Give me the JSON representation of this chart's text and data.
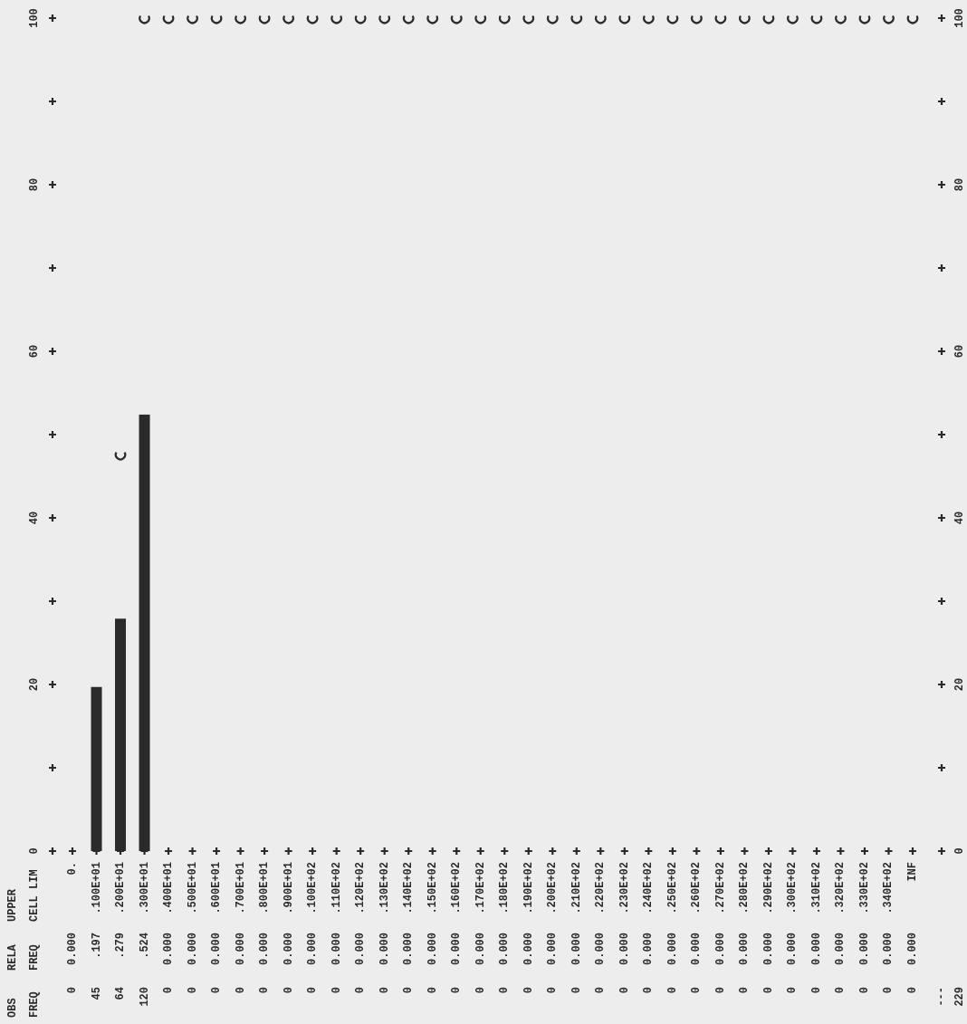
{
  "chart_data": {
    "type": "bar",
    "categories": [
      "0.",
      ".100E+01",
      ".200E+01",
      ".300E+01",
      ".400E+01",
      ".500E+01",
      ".600E+01",
      ".700E+01",
      ".800E+01",
      ".900E+01",
      ".100E+02",
      ".110E+02",
      ".120E+02",
      ".130E+02",
      ".140E+02",
      ".150E+02",
      ".160E+02",
      ".170E+02",
      ".180E+02",
      ".190E+02",
      ".200E+02",
      ".210E+02",
      ".220E+02",
      ".230E+02",
      ".240E+02",
      ".250E+02",
      ".260E+02",
      ".270E+02",
      ".280E+02",
      ".290E+02",
      ".300E+02",
      ".310E+02",
      ".320E+02",
      ".330E+02",
      ".340E+02",
      "INF"
    ],
    "series": [
      {
        "color": "#2a2a2a",
        "values": [
          0,
          19.7,
          27.9,
          52.4,
          0,
          0,
          0,
          0,
          0,
          0,
          0,
          0,
          0,
          0,
          0,
          0,
          0,
          0,
          0,
          0,
          0,
          0,
          0,
          0,
          0,
          0,
          0,
          0,
          0,
          0,
          0,
          0,
          0,
          0,
          0,
          0
        ]
      },
      {
        "type": "scatter",
        "color": "#2a2a2a",
        "values": [
          null,
          null,
          47.6,
          100,
          100,
          100,
          100,
          100,
          100,
          100,
          100,
          100,
          100,
          100,
          100,
          100,
          100,
          100,
          100,
          100,
          100,
          100,
          100,
          100,
          100,
          100,
          100,
          100,
          100,
          100,
          100,
          100,
          100,
          100,
          100,
          100
        ]
      }
    ],
    "ylim": [
      0,
      100
    ],
    "yticks": [
      0,
      {
        "value": 10,
        "label": null
      },
      20,
      {
        "value": 30,
        "label": null
      },
      40,
      {
        "value": 50,
        "label": null
      },
      60,
      {
        "value": 70,
        "label": null
      },
      80,
      {
        "value": 90,
        "label": null
      },
      100
    ],
    "y2lim": [
      0,
      100
    ],
    "y2ticks": [
      0,
      {
        "value": 10,
        "label": null
      },
      20,
      {
        "value": 30,
        "label": null
      },
      40,
      {
        "value": 50,
        "label": null
      },
      60,
      {
        "value": 70,
        "label": null
      },
      80,
      {
        "value": 90,
        "label": null
      },
      100
    ],
    "annotations": [
      "OBS FREQ",
      "RELA FREQ",
      "UPPER CELL LIM",
      "---",
      "229",
      "0",
      "45",
      "64",
      "120",
      "0",
      "0",
      "0",
      "0",
      "0",
      "0",
      "0",
      "0",
      "0",
      "0",
      "0",
      "0",
      "0",
      "0",
      "0",
      "0",
      "0",
      "0",
      "0",
      "0",
      "0",
      "0",
      "0",
      "0",
      "0",
      "0",
      "0",
      "0",
      "0",
      "0",
      "0",
      "0",
      "0.000",
      ".197",
      ".279",
      ".524",
      "0.000",
      "0.000",
      "0.000",
      "0.000",
      "0.000",
      "0.000",
      "0.000",
      "0.000",
      "0.000",
      "0.000",
      "0.000",
      "0.000",
      "0.000",
      "0.000",
      "0.000",
      "0.000",
      "0.000",
      "0.000",
      "0.000",
      "0.000",
      "0.000",
      "0.000",
      "0.000",
      "0.000",
      "0.000",
      "0.000",
      "0.000",
      "0.000",
      "0.000",
      "0.000",
      "0.000",
      "0.000"
    ]
  }
}
